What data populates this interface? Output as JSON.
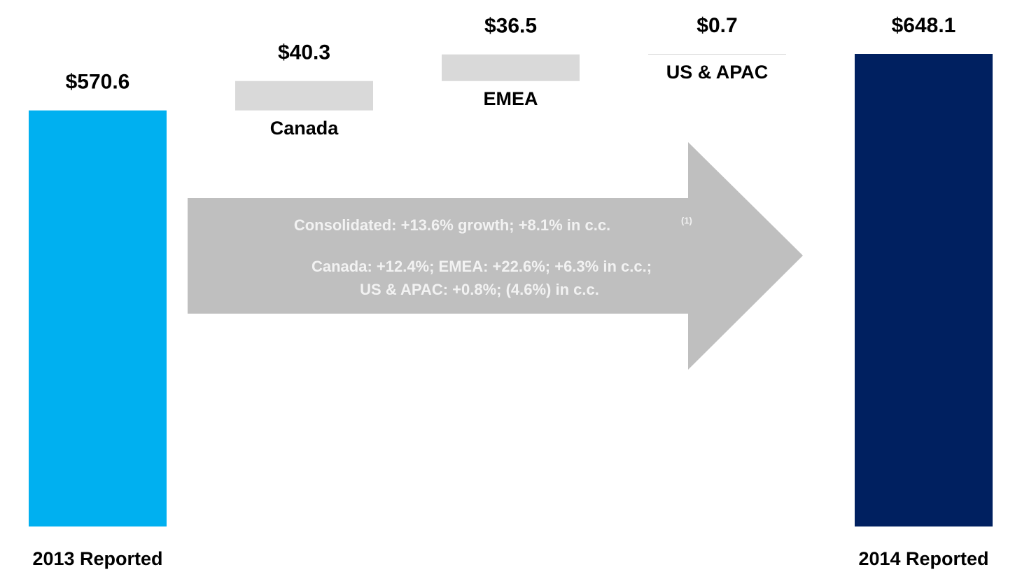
{
  "chart_data": {
    "type": "waterfall",
    "categories": [
      "2013 Reported",
      "Canada",
      "EMEA",
      "US & APAC",
      "2014 Reported"
    ],
    "values": [
      570.6,
      40.3,
      36.5,
      0.7,
      648.1
    ],
    "value_labels": [
      "$570.6",
      "$40.3",
      "$36.5",
      "$0.7",
      "$648.1"
    ],
    "measures": [
      "absolute",
      "relative",
      "relative",
      "relative",
      "total"
    ],
    "colors": [
      "#00b0f0",
      "#d9d9d9",
      "#d9d9d9",
      "#d9d9d9",
      "#002060"
    ],
    "annotations": [
      "Consolidated:  +13.6% growth; +8.1% in c.c.",
      "(1)",
      "Canada: +12.4%; EMEA: +22.6%; +6.3% in c.c.;",
      "US & APAC: +0.8%; (4.6%) in c.c."
    ]
  }
}
